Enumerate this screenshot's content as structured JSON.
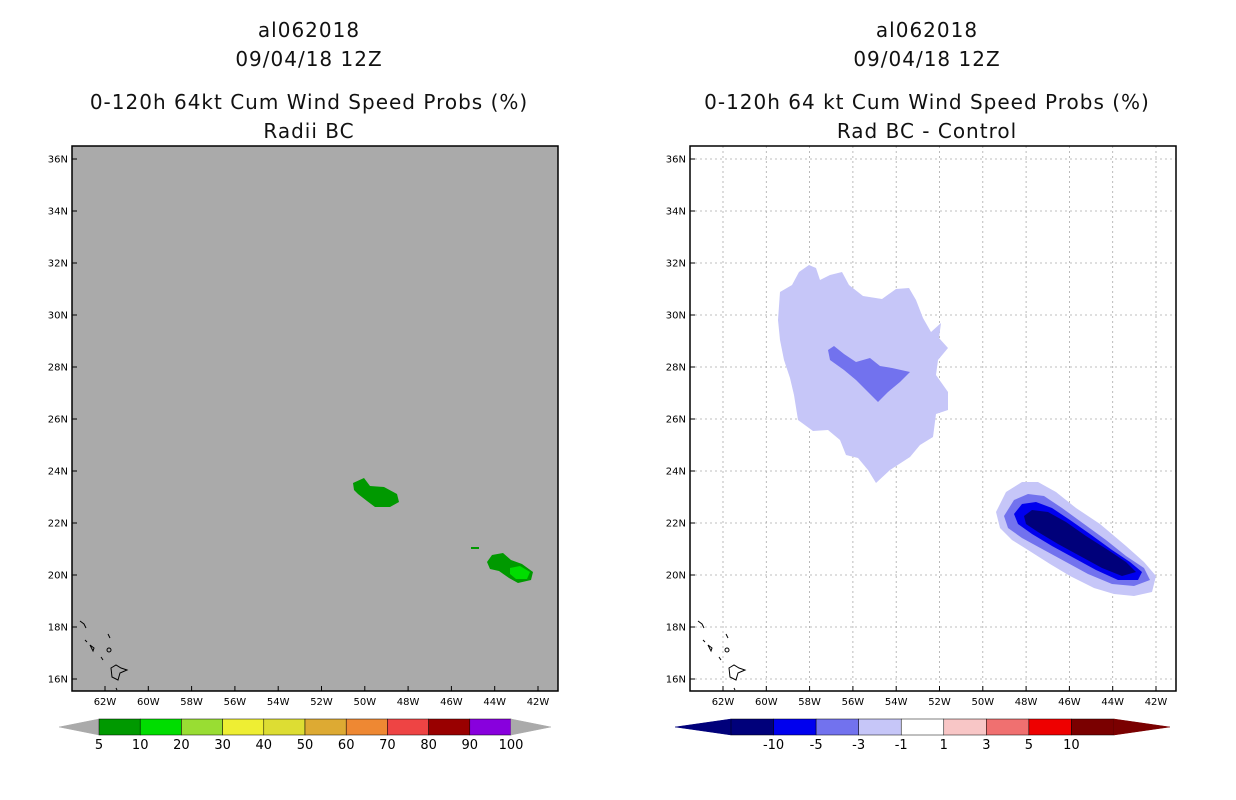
{
  "left": {
    "storm_id": "al062018",
    "datetime": "09/04/18 12Z",
    "title": "0-120h 64kt Cum Wind Speed Probs (%)",
    "subtitle": "Radii BC",
    "background_color": "#aaaaaa",
    "lat_labels": [
      "36N",
      "34N",
      "32N",
      "30N",
      "28N",
      "26N",
      "24N",
      "22N",
      "20N",
      "18N",
      "16N"
    ],
    "lon_labels": [
      "62W",
      "60W",
      "58W",
      "56W",
      "54W",
      "52W",
      "50W",
      "48W",
      "46W",
      "44W",
      "42W"
    ],
    "colorbar": {
      "colors": [
        "#009900",
        "#00dd00",
        "#99dd33",
        "#eeee33",
        "#dddd33",
        "#ddaa33",
        "#ee8833",
        "#ee4444",
        "#990000",
        "#8800dd"
      ],
      "labels": [
        "5",
        "10",
        "20",
        "30",
        "40",
        "50",
        "60",
        "70",
        "80",
        "90",
        "100"
      ]
    }
  },
  "right": {
    "storm_id": "al062018",
    "datetime": "09/04/18 12Z",
    "title": "0-120h 64 kt Cum Wind Speed Probs (%)",
    "subtitle": "Rad BC - Control",
    "background_color": "#ffffff",
    "lat_labels": [
      "36N",
      "34N",
      "32N",
      "30N",
      "28N",
      "26N",
      "24N",
      "22N",
      "20N",
      "18N",
      "16N"
    ],
    "lon_labels": [
      "62W",
      "60W",
      "58W",
      "56W",
      "54W",
      "52W",
      "50W",
      "48W",
      "46W",
      "44W",
      "42W"
    ],
    "colorbar": {
      "colors": [
        "#00007a",
        "#0000ee",
        "#7272ee",
        "#c6c6f8",
        "#ffffff",
        "#f8c6c6",
        "#f07070",
        "#ee0000",
        "#7a0000"
      ],
      "labels": [
        "-10",
        "-5",
        "-3",
        "-1",
        "1",
        "3",
        "5",
        "10"
      ]
    }
  }
}
